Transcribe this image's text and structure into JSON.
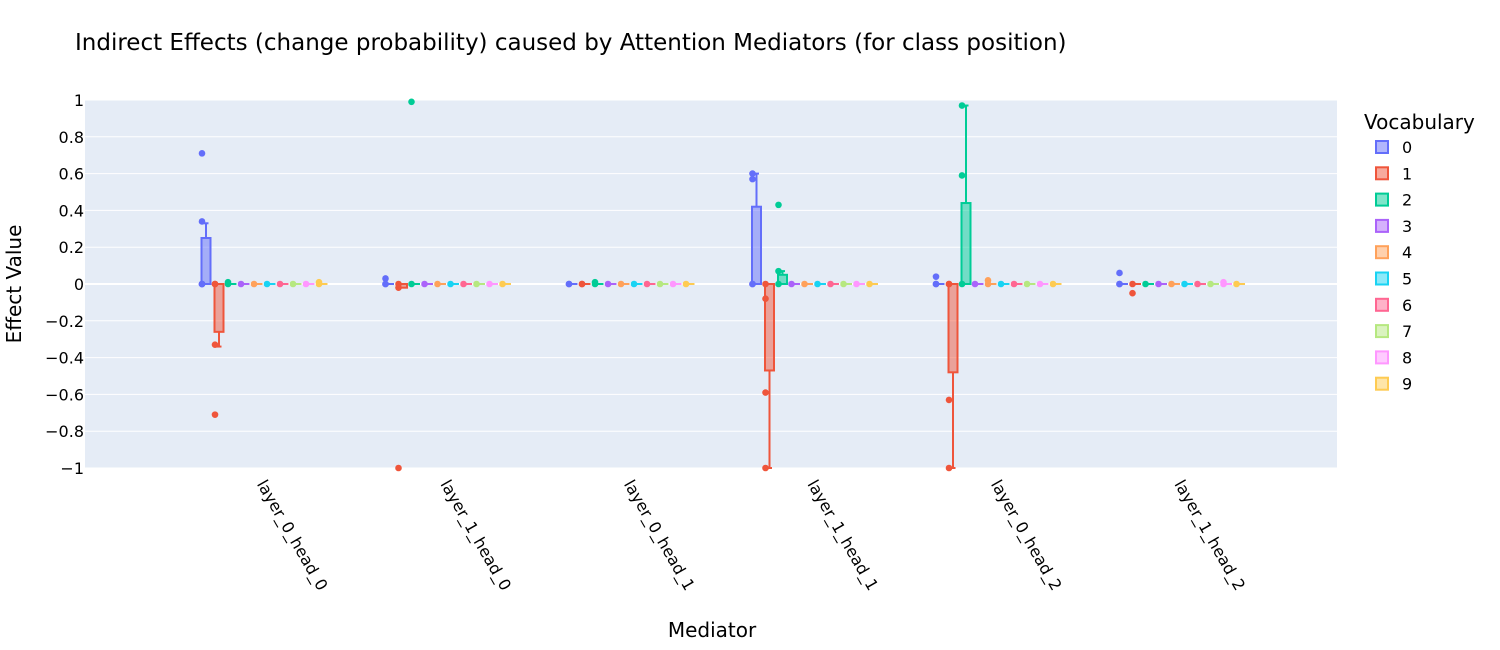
{
  "chart_data": {
    "type": "box",
    "title": "Indirect Effects (change probability) caused by Attention Mediators (for class position)",
    "xlabel": "Mediator",
    "ylabel": "Effect Value",
    "ylim": [
      -1,
      1
    ],
    "yticks": [
      "1",
      "0.8",
      "0.6",
      "0.4",
      "0.2",
      "0",
      "−0.2",
      "−0.4",
      "−0.6",
      "−0.8",
      "−1"
    ],
    "ytick_values": [
      1,
      0.8,
      0.6,
      0.4,
      0.2,
      0,
      -0.2,
      -0.4,
      -0.6,
      -0.8,
      -1
    ],
    "categories": [
      "layer_0_head_0",
      "layer_1_head_0",
      "layer_0_head_1",
      "layer_1_head_1",
      "layer_0_head_2",
      "layer_1_head_2"
    ],
    "legend": {
      "title": "Vocabulary",
      "placement": "right"
    },
    "series": [
      {
        "name": "0",
        "color": "#636efa",
        "values": [
          {
            "q1": 0,
            "median": 0,
            "q3": 0.25,
            "low": 0,
            "high": 0.33,
            "points": [
              0,
              0,
              0,
              0.34,
              0.71
            ]
          },
          {
            "q1": 0,
            "median": 0,
            "q3": 0,
            "low": 0,
            "high": 0,
            "points": [
              0,
              0,
              0.03
            ]
          },
          {
            "q1": 0,
            "median": 0,
            "q3": 0,
            "low": 0,
            "high": 0,
            "points": [
              0,
              0
            ]
          },
          {
            "q1": 0,
            "median": 0,
            "q3": 0.42,
            "low": 0,
            "high": 0.6,
            "points": [
              0,
              0,
              0.57,
              0.6
            ]
          },
          {
            "q1": 0,
            "median": 0,
            "q3": 0,
            "low": 0,
            "high": 0,
            "points": [
              0,
              0,
              0.04
            ]
          },
          {
            "q1": 0,
            "median": 0,
            "q3": 0,
            "low": 0,
            "high": 0,
            "points": [
              0,
              0,
              0.06
            ]
          }
        ]
      },
      {
        "name": "1",
        "color": "#ef553b",
        "values": [
          {
            "q1": -0.26,
            "median": 0,
            "q3": 0,
            "low": -0.34,
            "high": 0,
            "points": [
              0,
              0,
              -0.33,
              -0.71
            ]
          },
          {
            "q1": -0.02,
            "median": 0,
            "q3": 0,
            "low": -0.02,
            "high": 0,
            "points": [
              0,
              -0.02,
              -1.0
            ]
          },
          {
            "q1": 0,
            "median": 0,
            "q3": 0,
            "low": 0,
            "high": 0,
            "points": [
              0,
              0
            ]
          },
          {
            "q1": -0.47,
            "median": 0,
            "q3": 0,
            "low": -1.0,
            "high": 0,
            "points": [
              0,
              -0.08,
              -0.59,
              -1.0
            ]
          },
          {
            "q1": -0.48,
            "median": 0,
            "q3": 0,
            "low": -1.0,
            "high": 0,
            "points": [
              0,
              0,
              -0.63,
              -1.0
            ]
          },
          {
            "q1": 0,
            "median": 0,
            "q3": 0,
            "low": 0,
            "high": 0,
            "points": [
              0,
              -0.05
            ]
          }
        ]
      },
      {
        "name": "2",
        "color": "#00cc96",
        "values": [
          {
            "q1": 0,
            "median": 0,
            "q3": 0,
            "low": 0,
            "high": 0,
            "points": [
              0,
              0.01
            ]
          },
          {
            "q1": 0,
            "median": 0,
            "q3": 0,
            "low": 0,
            "high": 0,
            "points": [
              0,
              0.99
            ]
          },
          {
            "q1": 0,
            "median": 0,
            "q3": 0,
            "low": 0,
            "high": 0,
            "points": [
              0,
              0.01
            ]
          },
          {
            "q1": 0,
            "median": 0,
            "q3": 0.05,
            "low": 0,
            "high": 0.07,
            "points": [
              0,
              0.07,
              0.43
            ]
          },
          {
            "q1": 0,
            "median": 0,
            "q3": 0.44,
            "low": 0,
            "high": 0.97,
            "points": [
              0,
              0.59,
              0.97
            ]
          },
          {
            "q1": 0,
            "median": 0,
            "q3": 0,
            "low": 0,
            "high": 0,
            "points": [
              0
            ]
          }
        ]
      },
      {
        "name": "3",
        "color": "#ab63fa",
        "values": [
          {
            "q1": 0,
            "median": 0,
            "q3": 0,
            "low": 0,
            "high": 0,
            "points": [
              0
            ]
          },
          {
            "q1": 0,
            "median": 0,
            "q3": 0,
            "low": 0,
            "high": 0,
            "points": [
              0
            ]
          },
          {
            "q1": 0,
            "median": 0,
            "q3": 0,
            "low": 0,
            "high": 0,
            "points": [
              0
            ]
          },
          {
            "q1": 0,
            "median": 0,
            "q3": 0,
            "low": 0,
            "high": 0,
            "points": [
              0
            ]
          },
          {
            "q1": 0,
            "median": 0,
            "q3": 0,
            "low": 0,
            "high": 0,
            "points": [
              0
            ]
          },
          {
            "q1": 0,
            "median": 0,
            "q3": 0,
            "low": 0,
            "high": 0,
            "points": [
              0
            ]
          }
        ]
      },
      {
        "name": "4",
        "color": "#ffa15a",
        "values": [
          {
            "q1": 0,
            "median": 0,
            "q3": 0,
            "low": 0,
            "high": 0,
            "points": [
              0
            ]
          },
          {
            "q1": 0,
            "median": 0,
            "q3": 0,
            "low": 0,
            "high": 0,
            "points": [
              0
            ]
          },
          {
            "q1": 0,
            "median": 0,
            "q3": 0,
            "low": 0,
            "high": 0,
            "points": [
              0
            ]
          },
          {
            "q1": 0,
            "median": 0,
            "q3": 0,
            "low": 0,
            "high": 0,
            "points": [
              0
            ]
          },
          {
            "q1": 0,
            "median": 0,
            "q3": 0,
            "low": 0,
            "high": 0,
            "points": [
              0,
              0.02
            ]
          },
          {
            "q1": 0,
            "median": 0,
            "q3": 0,
            "low": 0,
            "high": 0,
            "points": [
              0
            ]
          }
        ]
      },
      {
        "name": "5",
        "color": "#19d3f3",
        "values": [
          {
            "q1": 0,
            "median": 0,
            "q3": 0,
            "low": 0,
            "high": 0,
            "points": [
              0
            ]
          },
          {
            "q1": 0,
            "median": 0,
            "q3": 0,
            "low": 0,
            "high": 0,
            "points": [
              0
            ]
          },
          {
            "q1": 0,
            "median": 0,
            "q3": 0,
            "low": 0,
            "high": 0,
            "points": [
              0
            ]
          },
          {
            "q1": 0,
            "median": 0,
            "q3": 0,
            "low": 0,
            "high": 0,
            "points": [
              0
            ]
          },
          {
            "q1": 0,
            "median": 0,
            "q3": 0,
            "low": 0,
            "high": 0,
            "points": [
              0
            ]
          },
          {
            "q1": 0,
            "median": 0,
            "q3": 0,
            "low": 0,
            "high": 0,
            "points": [
              0
            ]
          }
        ]
      },
      {
        "name": "6",
        "color": "#ff6692",
        "values": [
          {
            "q1": 0,
            "median": 0,
            "q3": 0,
            "low": 0,
            "high": 0,
            "points": [
              0
            ]
          },
          {
            "q1": 0,
            "median": 0,
            "q3": 0,
            "low": 0,
            "high": 0,
            "points": [
              0
            ]
          },
          {
            "q1": 0,
            "median": 0,
            "q3": 0,
            "low": 0,
            "high": 0,
            "points": [
              0
            ]
          },
          {
            "q1": 0,
            "median": 0,
            "q3": 0,
            "low": 0,
            "high": 0,
            "points": [
              0
            ]
          },
          {
            "q1": 0,
            "median": 0,
            "q3": 0,
            "low": 0,
            "high": 0,
            "points": [
              0
            ]
          },
          {
            "q1": 0,
            "median": 0,
            "q3": 0,
            "low": 0,
            "high": 0,
            "points": [
              0
            ]
          }
        ]
      },
      {
        "name": "7",
        "color": "#b6e880",
        "values": [
          {
            "q1": 0,
            "median": 0,
            "q3": 0,
            "low": 0,
            "high": 0,
            "points": [
              0
            ]
          },
          {
            "q1": 0,
            "median": 0,
            "q3": 0,
            "low": 0,
            "high": 0,
            "points": [
              0
            ]
          },
          {
            "q1": 0,
            "median": 0,
            "q3": 0,
            "low": 0,
            "high": 0,
            "points": [
              0
            ]
          },
          {
            "q1": 0,
            "median": 0,
            "q3": 0,
            "low": 0,
            "high": 0,
            "points": [
              0
            ]
          },
          {
            "q1": 0,
            "median": 0,
            "q3": 0,
            "low": 0,
            "high": 0,
            "points": [
              0
            ]
          },
          {
            "q1": 0,
            "median": 0,
            "q3": 0,
            "low": 0,
            "high": 0,
            "points": [
              0
            ]
          }
        ]
      },
      {
        "name": "8",
        "color": "#ff97ff",
        "values": [
          {
            "q1": 0,
            "median": 0,
            "q3": 0,
            "low": 0,
            "high": 0,
            "points": [
              0
            ]
          },
          {
            "q1": 0,
            "median": 0,
            "q3": 0,
            "low": 0,
            "high": 0,
            "points": [
              0
            ]
          },
          {
            "q1": 0,
            "median": 0,
            "q3": 0,
            "low": 0,
            "high": 0,
            "points": [
              0
            ]
          },
          {
            "q1": 0,
            "median": 0,
            "q3": 0,
            "low": 0,
            "high": 0,
            "points": [
              0
            ]
          },
          {
            "q1": 0,
            "median": 0,
            "q3": 0,
            "low": 0,
            "high": 0,
            "points": [
              0
            ]
          },
          {
            "q1": 0,
            "median": 0,
            "q3": 0,
            "low": 0,
            "high": 0,
            "points": [
              0,
              0.01
            ]
          }
        ]
      },
      {
        "name": "9",
        "color": "#fecb52",
        "values": [
          {
            "q1": 0,
            "median": 0,
            "q3": 0,
            "low": 0,
            "high": 0,
            "points": [
              0,
              0.01
            ]
          },
          {
            "q1": 0,
            "median": 0,
            "q3": 0,
            "low": 0,
            "high": 0,
            "points": [
              0
            ]
          },
          {
            "q1": 0,
            "median": 0,
            "q3": 0,
            "low": 0,
            "high": 0,
            "points": [
              0
            ]
          },
          {
            "q1": 0,
            "median": 0,
            "q3": 0,
            "low": 0,
            "high": 0,
            "points": [
              0
            ]
          },
          {
            "q1": 0,
            "median": 0,
            "q3": 0,
            "low": 0,
            "high": 0,
            "points": [
              0
            ]
          },
          {
            "q1": 0,
            "median": 0,
            "q3": 0,
            "low": 0,
            "high": 0,
            "points": [
              0
            ]
          }
        ]
      }
    ],
    "grid": true,
    "colors": {
      "plot_bg": "#e5ecf6",
      "grid": "#ffffff"
    }
  }
}
